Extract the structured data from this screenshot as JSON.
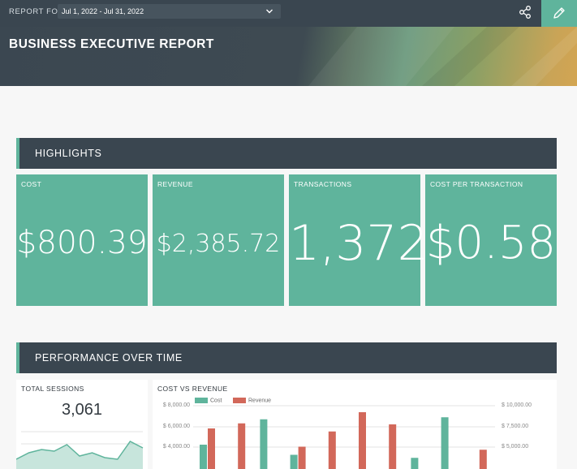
{
  "header": {
    "report_for_label": "REPORT FOR",
    "date_range": "Jul 1, 2022 - Jul 31, 2022",
    "title": "BUSINESS EXECUTIVE REPORT"
  },
  "sections": {
    "highlights": "HIGHLIGHTS",
    "performance": "PERFORMANCE OVER TIME"
  },
  "kpis": [
    {
      "label": "COST",
      "value": "$800.39"
    },
    {
      "label": "REVENUE",
      "value": "$2,385.72"
    },
    {
      "label": "TRANSACTIONS",
      "value": "1,372"
    },
    {
      "label": "COST PER TRANSACTION",
      "value": "$0.58"
    }
  ],
  "sessions_card": {
    "label": "TOTAL SESSIONS",
    "value": "3,061"
  },
  "cost_revenue_card": {
    "label": "COST VS REVENUE",
    "legend": [
      "Cost",
      "Revenue"
    ],
    "left_ticks": [
      "$ 8,000.00",
      "$ 6,000.00",
      "$ 4,000.00"
    ],
    "right_ticks": [
      "$ 10,000.00",
      "$ 7,500.00",
      "$ 5,000.00"
    ]
  },
  "colors": {
    "accent": "#5fb49c",
    "dark": "#3a4650",
    "revenue": "#d2685a"
  },
  "chart_data": [
    {
      "type": "area",
      "title": "TOTAL SESSIONS",
      "values": [
        60,
        100,
        120,
        110,
        150,
        80,
        100,
        70,
        60,
        170,
        130
      ]
    },
    {
      "type": "bar",
      "title": "COST VS REVENUE",
      "series": [
        {
          "name": "Cost",
          "values": [
            4400,
            null,
            6900,
            3400,
            null,
            null,
            null,
            3100,
            7100,
            null
          ]
        },
        {
          "name": "Revenue",
          "values": [
            6000,
            6500,
            null,
            4200,
            5700,
            7600,
            6400,
            null,
            null,
            3900
          ]
        }
      ],
      "ylim_left": [
        0,
        8000
      ],
      "ylim_right": [
        0,
        10000
      ]
    }
  ]
}
